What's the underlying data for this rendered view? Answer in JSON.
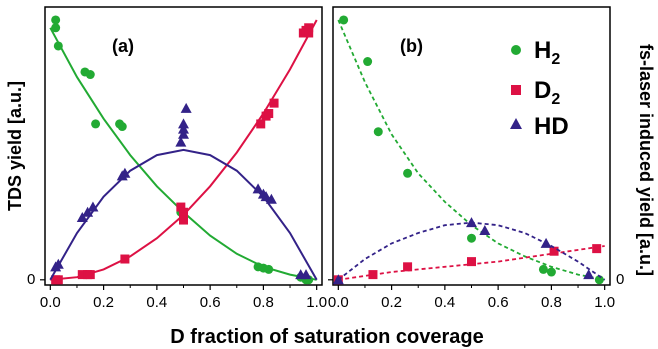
{
  "xlabel": "D fraction of saturation coverage",
  "ylabel_left": "TDS yield [a.u.]",
  "ylabel_right": "fs-laser induced yield [a.u.]",
  "colors": {
    "H2": "#22aa33",
    "D2": "#dd1144",
    "HD": "#332288"
  },
  "chart_data": [
    {
      "type": "scatter",
      "panel_label": "(a)",
      "xticks": [
        "0.0",
        "0.2",
        "0.4",
        "0.6",
        "0.8",
        "1.0"
      ],
      "yticks": [
        "0"
      ],
      "xlim": [
        -0.02,
        1.02
      ],
      "ylim": [
        -0.02,
        1.05
      ],
      "series": [
        {
          "key": "H2",
          "marker": "circle",
          "points": [
            [
              0.02,
              1.0
            ],
            [
              0.02,
              0.97
            ],
            [
              0.03,
              0.9
            ],
            [
              0.13,
              0.8
            ],
            [
              0.15,
              0.79
            ],
            [
              0.17,
              0.6
            ],
            [
              0.26,
              0.6
            ],
            [
              0.27,
              0.59
            ],
            [
              0.49,
              0.26
            ],
            [
              0.5,
              0.24
            ],
            [
              0.78,
              0.05
            ],
            [
              0.8,
              0.045
            ],
            [
              0.82,
              0.04
            ],
            [
              0.94,
              0.01
            ],
            [
              0.96,
              0.0
            ],
            [
              0.97,
              0.0
            ]
          ],
          "fit": [
            [
              0.0,
              0.97
            ],
            [
              0.1,
              0.78
            ],
            [
              0.2,
              0.62
            ],
            [
              0.3,
              0.48
            ],
            [
              0.4,
              0.36
            ],
            [
              0.5,
              0.26
            ],
            [
              0.6,
              0.17
            ],
            [
              0.7,
              0.1
            ],
            [
              0.8,
              0.05
            ],
            [
              0.9,
              0.02
            ],
            [
              1.0,
              0.0
            ]
          ]
        },
        {
          "key": "D2",
          "marker": "square",
          "points": [
            [
              0.02,
              0.0
            ],
            [
              0.03,
              0.0
            ],
            [
              0.12,
              0.02
            ],
            [
              0.14,
              0.02
            ],
            [
              0.15,
              0.02
            ],
            [
              0.28,
              0.08
            ],
            [
              0.49,
              0.28
            ],
            [
              0.5,
              0.26
            ],
            [
              0.5,
              0.24
            ],
            [
              0.5,
              0.23
            ],
            [
              0.79,
              0.6
            ],
            [
              0.81,
              0.63
            ],
            [
              0.82,
              0.64
            ],
            [
              0.84,
              0.68
            ],
            [
              0.95,
              0.95
            ],
            [
              0.96,
              0.96
            ],
            [
              0.97,
              0.97
            ],
            [
              0.97,
              0.95
            ]
          ],
          "fit": [
            [
              0.0,
              0.0
            ],
            [
              0.1,
              0.01
            ],
            [
              0.2,
              0.04
            ],
            [
              0.3,
              0.09
            ],
            [
              0.4,
              0.16
            ],
            [
              0.5,
              0.25
            ],
            [
              0.6,
              0.36
            ],
            [
              0.7,
              0.49
            ],
            [
              0.8,
              0.64
            ],
            [
              0.9,
              0.81
            ],
            [
              1.0,
              1.0
            ]
          ]
        },
        {
          "key": "HD",
          "marker": "triangle",
          "points": [
            [
              0.02,
              0.05
            ],
            [
              0.03,
              0.06
            ],
            [
              0.12,
              0.24
            ],
            [
              0.14,
              0.26
            ],
            [
              0.16,
              0.28
            ],
            [
              0.27,
              0.4
            ],
            [
              0.28,
              0.41
            ],
            [
              0.49,
              0.53
            ],
            [
              0.5,
              0.56
            ],
            [
              0.5,
              0.58
            ],
            [
              0.5,
              0.6
            ],
            [
              0.51,
              0.66
            ],
            [
              0.78,
              0.35
            ],
            [
              0.8,
              0.33
            ],
            [
              0.81,
              0.32
            ],
            [
              0.83,
              0.31
            ],
            [
              0.94,
              0.02
            ],
            [
              0.96,
              0.02
            ]
          ],
          "fit": [
            [
              0.0,
              0.0
            ],
            [
              0.1,
              0.18
            ],
            [
              0.2,
              0.32
            ],
            [
              0.3,
              0.42
            ],
            [
              0.4,
              0.48
            ],
            [
              0.5,
              0.5
            ],
            [
              0.6,
              0.48
            ],
            [
              0.7,
              0.42
            ],
            [
              0.8,
              0.32
            ],
            [
              0.9,
              0.18
            ],
            [
              1.0,
              0.0
            ]
          ]
        }
      ]
    },
    {
      "type": "scatter",
      "panel_label": "(b)",
      "xticks": [
        "0.0",
        "0.2",
        "0.4",
        "0.6",
        "0.8",
        "1.0"
      ],
      "yticks": [
        "0"
      ],
      "xlim": [
        -0.02,
        1.02
      ],
      "ylim": [
        -0.02,
        1.05
      ],
      "legend_position": "top-right",
      "legend": [
        {
          "key": "H2",
          "label": "H",
          "sub": "2"
        },
        {
          "key": "D2",
          "label": "D",
          "sub": "2"
        },
        {
          "key": "HD",
          "label": "HD",
          "sub": ""
        }
      ],
      "series": [
        {
          "key": "H2",
          "marker": "circle",
          "points": [
            [
              0.02,
              1.0
            ],
            [
              0.11,
              0.84
            ],
            [
              0.15,
              0.57
            ],
            [
              0.26,
              0.41
            ],
            [
              0.5,
              0.16
            ],
            [
              0.77,
              0.04
            ],
            [
              0.8,
              0.03
            ],
            [
              0.98,
              0.0
            ]
          ],
          "fit": [
            [
              0.0,
              1.0
            ],
            [
              0.1,
              0.76
            ],
            [
              0.2,
              0.56
            ],
            [
              0.3,
              0.41
            ],
            [
              0.4,
              0.3
            ],
            [
              0.5,
              0.21
            ],
            [
              0.6,
              0.14
            ],
            [
              0.7,
              0.09
            ],
            [
              0.8,
              0.05
            ],
            [
              0.9,
              0.02
            ],
            [
              1.0,
              0.0
            ]
          ]
        },
        {
          "key": "D2",
          "marker": "square",
          "points": [
            [
              0.0,
              0.0
            ],
            [
              0.13,
              0.02
            ],
            [
              0.26,
              0.05
            ],
            [
              0.5,
              0.07
            ],
            [
              0.81,
              0.11
            ],
            [
              0.97,
              0.12
            ]
          ],
          "fit": [
            [
              0.0,
              0.0
            ],
            [
              0.2,
              0.03
            ],
            [
              0.4,
              0.05
            ],
            [
              0.6,
              0.07
            ],
            [
              0.8,
              0.1
            ],
            [
              1.0,
              0.13
            ]
          ]
        },
        {
          "key": "HD",
          "marker": "triangle",
          "points": [
            [
              0.0,
              0.0
            ],
            [
              0.5,
              0.22
            ],
            [
              0.55,
              0.19
            ],
            [
              0.78,
              0.14
            ],
            [
              0.94,
              0.02
            ]
          ],
          "fit": [
            [
              0.0,
              0.0
            ],
            [
              0.1,
              0.08
            ],
            [
              0.2,
              0.14
            ],
            [
              0.3,
              0.18
            ],
            [
              0.4,
              0.21
            ],
            [
              0.5,
              0.22
            ],
            [
              0.6,
              0.21
            ],
            [
              0.7,
              0.18
            ],
            [
              0.8,
              0.13
            ],
            [
              0.9,
              0.07
            ],
            [
              1.0,
              0.0
            ]
          ]
        }
      ]
    }
  ]
}
